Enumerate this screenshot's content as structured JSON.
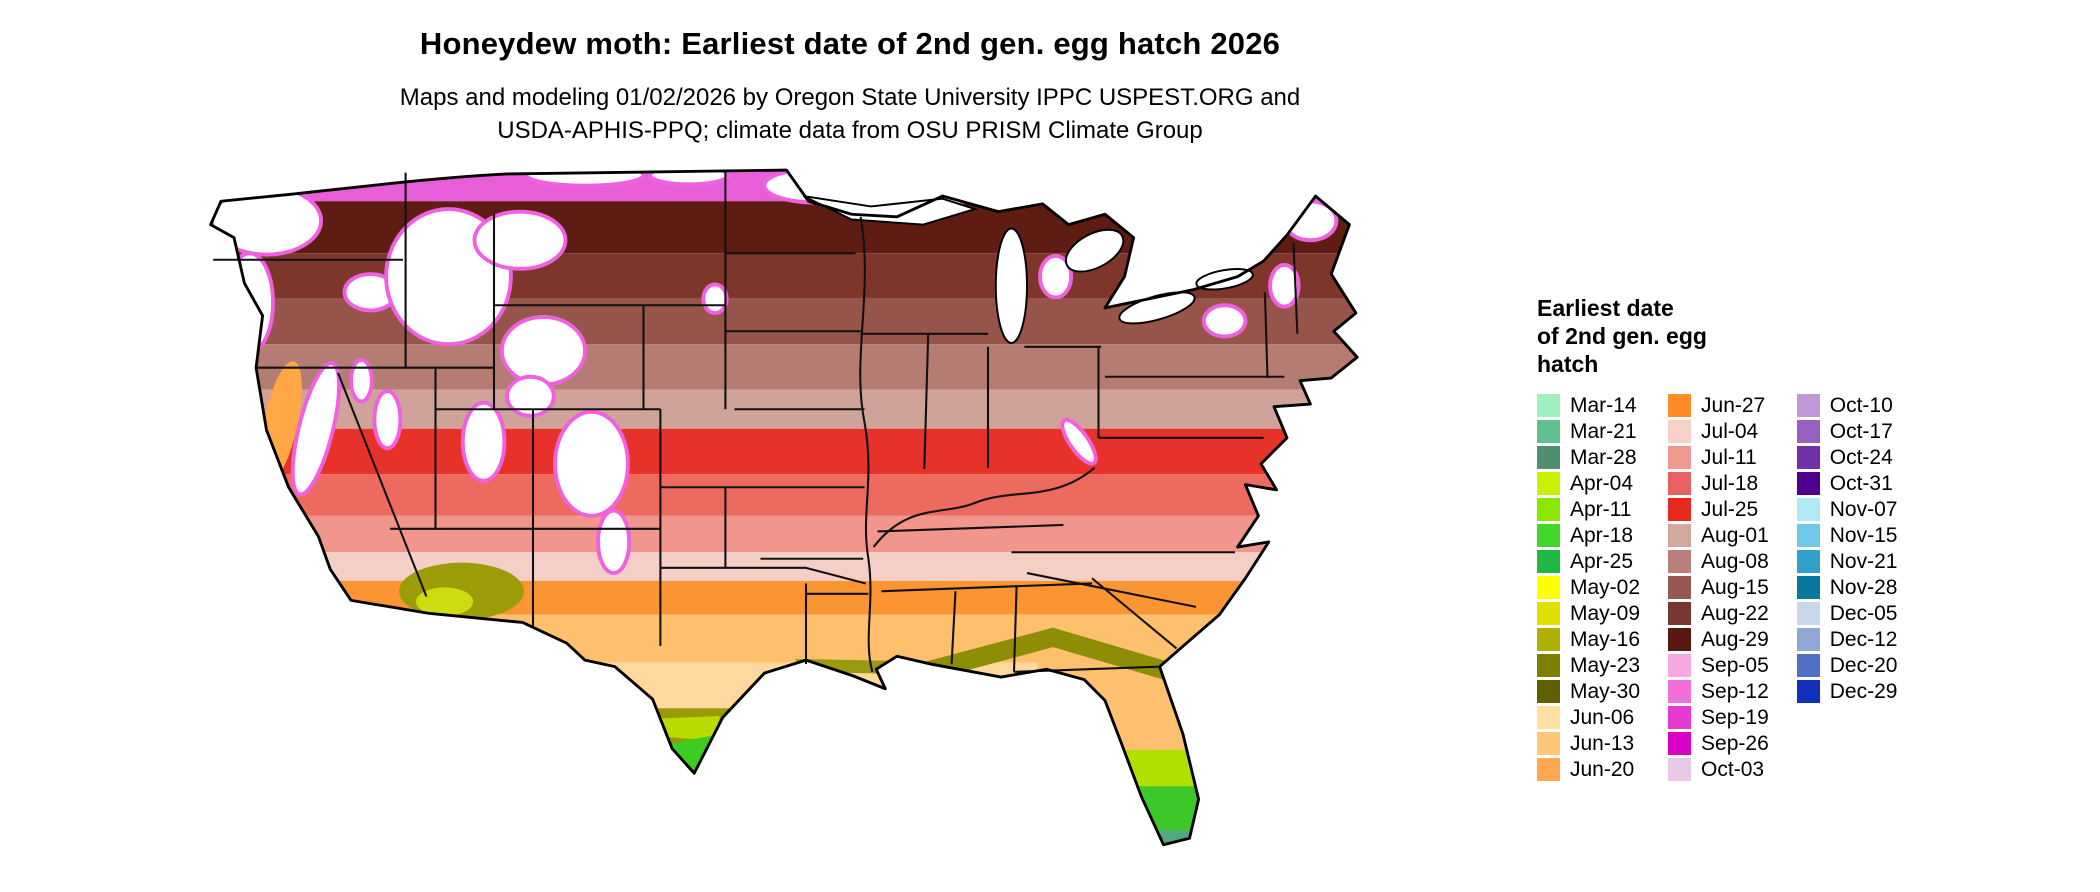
{
  "header": {
    "title": "Honeydew moth: Earliest date of 2nd gen. egg hatch 2026",
    "subtitle_line1": "Maps and modeling 01/02/2026 by Oregon State University IPPC USPEST.ORG and",
    "subtitle_line2": "USDA-APHIS-PPQ; climate data from OSU PRISM Climate Group"
  },
  "legend": {
    "title_lines": [
      "Earliest date",
      "of 2nd gen. egg",
      "hatch"
    ],
    "columns": [
      [
        {
          "label": "Mar-14",
          "color": "#A0EFC0"
        },
        {
          "label": "Mar-21",
          "color": "#60C090"
        },
        {
          "label": "Mar-28",
          "color": "#509070"
        },
        {
          "label": "Apr-04",
          "color": "#C8F000"
        },
        {
          "label": "Apr-11",
          "color": "#88E800"
        },
        {
          "label": "Apr-18",
          "color": "#40D828"
        },
        {
          "label": "Apr-25",
          "color": "#20B840"
        },
        {
          "label": "May-02",
          "color": "#FFFF00"
        },
        {
          "label": "May-09",
          "color": "#E0E000"
        },
        {
          "label": "May-16",
          "color": "#B0B000"
        },
        {
          "label": "May-23",
          "color": "#808000"
        },
        {
          "label": "May-30",
          "color": "#606000"
        },
        {
          "label": "Jun-06",
          "color": "#FFE0A0"
        },
        {
          "label": "Jun-13",
          "color": "#FFC878"
        },
        {
          "label": "Jun-20",
          "color": "#FFA850"
        }
      ],
      [
        {
          "label": "Jun-27",
          "color": "#FF8C28"
        },
        {
          "label": "Jul-04",
          "color": "#F8D0C8"
        },
        {
          "label": "Jul-11",
          "color": "#F09890"
        },
        {
          "label": "Jul-18",
          "color": "#E86060"
        },
        {
          "label": "Jul-25",
          "color": "#E82820"
        },
        {
          "label": "Aug-01",
          "color": "#D0A8A0"
        },
        {
          "label": "Aug-08",
          "color": "#B88078"
        },
        {
          "label": "Aug-15",
          "color": "#985850"
        },
        {
          "label": "Aug-22",
          "color": "#783830"
        },
        {
          "label": "Aug-29",
          "color": "#581810"
        },
        {
          "label": "Sep-05",
          "color": "#F8A8E0"
        },
        {
          "label": "Sep-12",
          "color": "#F070D8"
        },
        {
          "label": "Sep-19",
          "color": "#E838D0"
        },
        {
          "label": "Sep-26",
          "color": "#D800C8"
        },
        {
          "label": "Oct-03",
          "color": "#E8C8E8"
        }
      ],
      [
        {
          "label": "Oct-10",
          "color": "#C098D8"
        },
        {
          "label": "Oct-17",
          "color": "#9860C0"
        },
        {
          "label": "Oct-24",
          "color": "#7030A8"
        },
        {
          "label": "Oct-31",
          "color": "#500090"
        },
        {
          "label": "Nov-07",
          "color": "#B0E8F8"
        },
        {
          "label": "Nov-15",
          "color": "#70C8E8"
        },
        {
          "label": "Nov-21",
          "color": "#30A0C8"
        },
        {
          "label": "Nov-28",
          "color": "#0878A0"
        },
        {
          "label": "Dec-05",
          "color": "#C8D8E8"
        },
        {
          "label": "Dec-12",
          "color": "#90A8D8"
        },
        {
          "label": "Dec-20",
          "color": "#5070C8"
        },
        {
          "label": "Dec-29",
          "color": "#1030B8"
        }
      ]
    ]
  }
}
